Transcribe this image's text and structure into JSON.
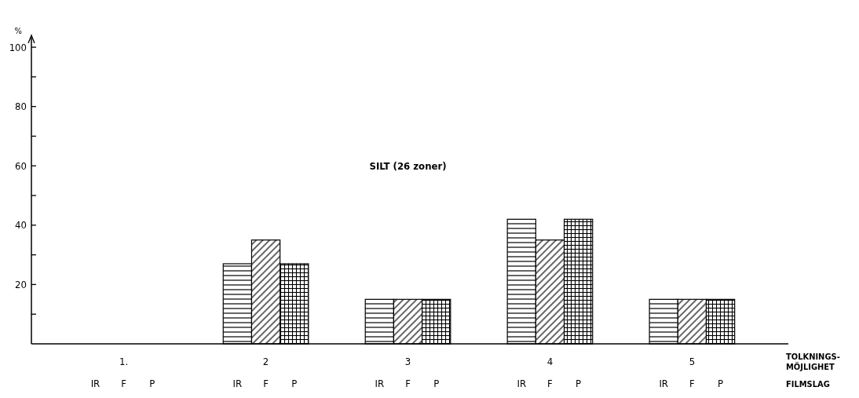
{
  "chart_data": {
    "type": "bar",
    "title": "SILT (26 zoner)",
    "ylabel": "%",
    "xlabel": "TOLKNINGS-\nMÖJLIGHET",
    "legend_title": "FILMSLAG",
    "categories": [
      "1.",
      "2",
      "3",
      "4",
      "5"
    ],
    "series": [
      {
        "name": "IR",
        "color": "#000000",
        "values": [
          0,
          27,
          15,
          42,
          15
        ]
      },
      {
        "name": "F",
        "color": "#000000",
        "values": [
          0,
          35,
          15,
          35,
          15
        ]
      },
      {
        "name": "P",
        "color": "#000000",
        "values": [
          0,
          27,
          15,
          42,
          15
        ]
      }
    ],
    "ylim": [
      0,
      104
    ],
    "yticks": [
      {
        "value": 10,
        "label": null
      },
      20,
      {
        "value": 30,
        "label": null
      },
      40,
      {
        "value": 50,
        "label": null
      },
      60,
      {
        "value": 70,
        "label": null
      },
      80,
      {
        "value": 90,
        "label": null
      },
      100
    ],
    "grid": false,
    "legend": "bottom"
  }
}
